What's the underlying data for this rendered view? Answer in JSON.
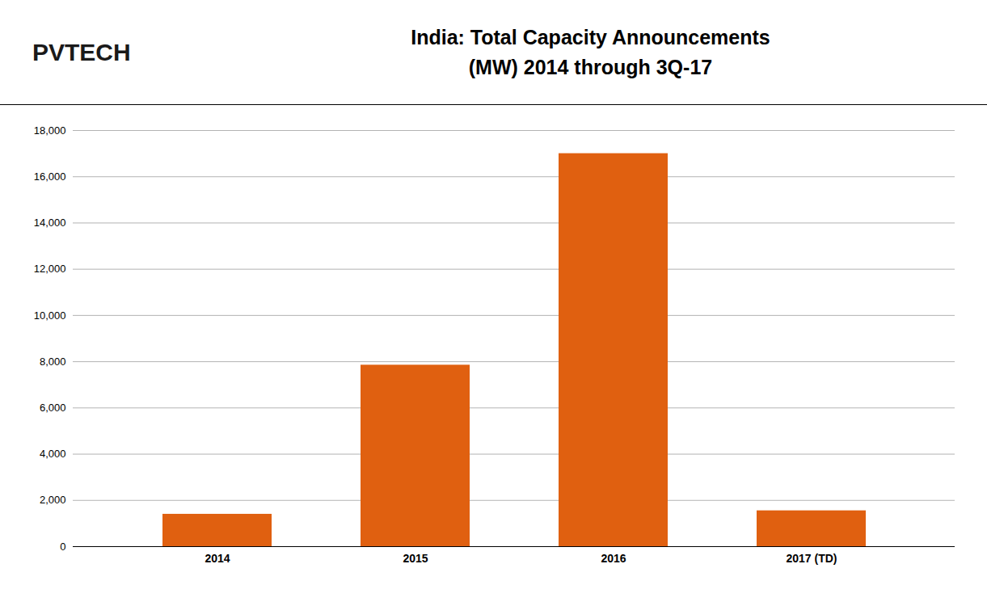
{
  "chart_data": {
    "type": "bar",
    "title": "India: Total Capacity Announcements",
    "subtitle": "(MW) 2014 through 3Q-17",
    "annotations": [
      "PVTECH"
    ],
    "categories": [
      "2014",
      "2015",
      "2016",
      "2017 (TD)"
    ],
    "values": [
      1400,
      7850,
      17000,
      1550
    ],
    "color": "#E06010",
    "ylim": [
      0,
      18000
    ],
    "yticks": [
      0,
      {
        "value": 2000,
        "label": "2,000"
      },
      {
        "value": 4000,
        "label": "4,000"
      },
      {
        "value": 6000,
        "label": "6,000"
      },
      {
        "value": 8000,
        "label": "8,000"
      },
      {
        "value": 10000,
        "label": "10,000"
      },
      {
        "value": 12000,
        "label": "12,000"
      },
      {
        "value": 14000,
        "label": "14,000"
      },
      {
        "value": 16000,
        "label": "16,000"
      },
      {
        "value": 18000,
        "label": "18,000"
      }
    ],
    "grid": true
  }
}
